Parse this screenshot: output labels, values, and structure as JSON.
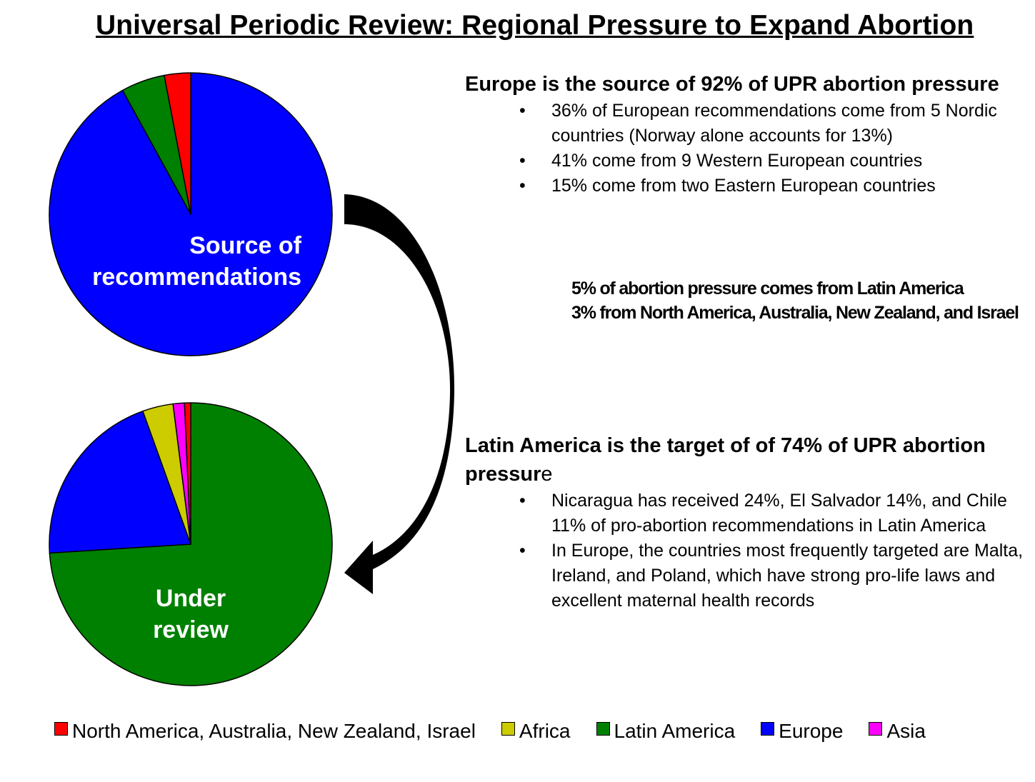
{
  "title": "Universal Periodic Review: Regional Pressure to Expand Abortion",
  "colors": {
    "north_america": "#FF0000",
    "africa": "#CCCC00",
    "latin_america": "#008000",
    "europe": "#0000FF",
    "asia": "#FF00FF"
  },
  "chart_data": [
    {
      "type": "pie",
      "label": "Source of recommendations",
      "label_lines": [
        "Source of",
        "recommendations"
      ],
      "slices": [
        {
          "name": "Europe",
          "value": 92,
          "color": "#0000FF"
        },
        {
          "name": "Latin America",
          "value": 5,
          "color": "#008000"
        },
        {
          "name": "North America, Australia, New Zealand, Israel",
          "value": 3,
          "color": "#FF0000"
        }
      ]
    },
    {
      "type": "pie",
      "label": "Under review",
      "label_lines": [
        "Under",
        "review"
      ],
      "slices": [
        {
          "name": "Latin America",
          "value": 74,
          "color": "#008000"
        },
        {
          "name": "Europe",
          "value": 20.5,
          "color": "#0000FF"
        },
        {
          "name": "Africa",
          "value": 3.5,
          "color": "#CCCC00"
        },
        {
          "name": "Asia",
          "value": 1.3,
          "color": "#FF00FF"
        },
        {
          "name": "North America, Australia, New Zealand, Israel",
          "value": 0.7,
          "color": "#FF0000"
        }
      ]
    }
  ],
  "europe_block": {
    "heading": "Europe is the source of 92% of UPR abortion pressure",
    "bullets": [
      "36% of European recommendations come from 5 Nordic countries (Norway alone accounts for 13%)",
      "41% come from 9 Western European countries",
      "15% come from two Eastern European countries"
    ]
  },
  "secondary_notes": {
    "line1": "5% of abortion pressure comes from Latin America",
    "line2": "3% from North America, Australia, New Zealand, and Israel"
  },
  "latin_block": {
    "heading_bold": "Latin America is the target of of 74% of UPR abortion pressur",
    "heading_tail": "e",
    "bullets": [
      "Nicaragua has received 24%, El Salvador 14%, and Chile 11% of pro-abortion recommendations in Latin America",
      "In Europe, the countries most frequently targeted are Malta, Ireland, and Poland, which have strong pro-life laws and excellent maternal health records"
    ]
  },
  "bullet_char": "•",
  "legend": [
    {
      "label": "North America, Australia, New Zealand, Israel",
      "color": "#FF0000"
    },
    {
      "label": "Africa",
      "color": "#CCCC00"
    },
    {
      "label": "Latin America",
      "color": "#008000"
    },
    {
      "label": "Europe",
      "color": "#0000FF"
    },
    {
      "label": "Asia",
      "color": "#FF00FF"
    }
  ]
}
